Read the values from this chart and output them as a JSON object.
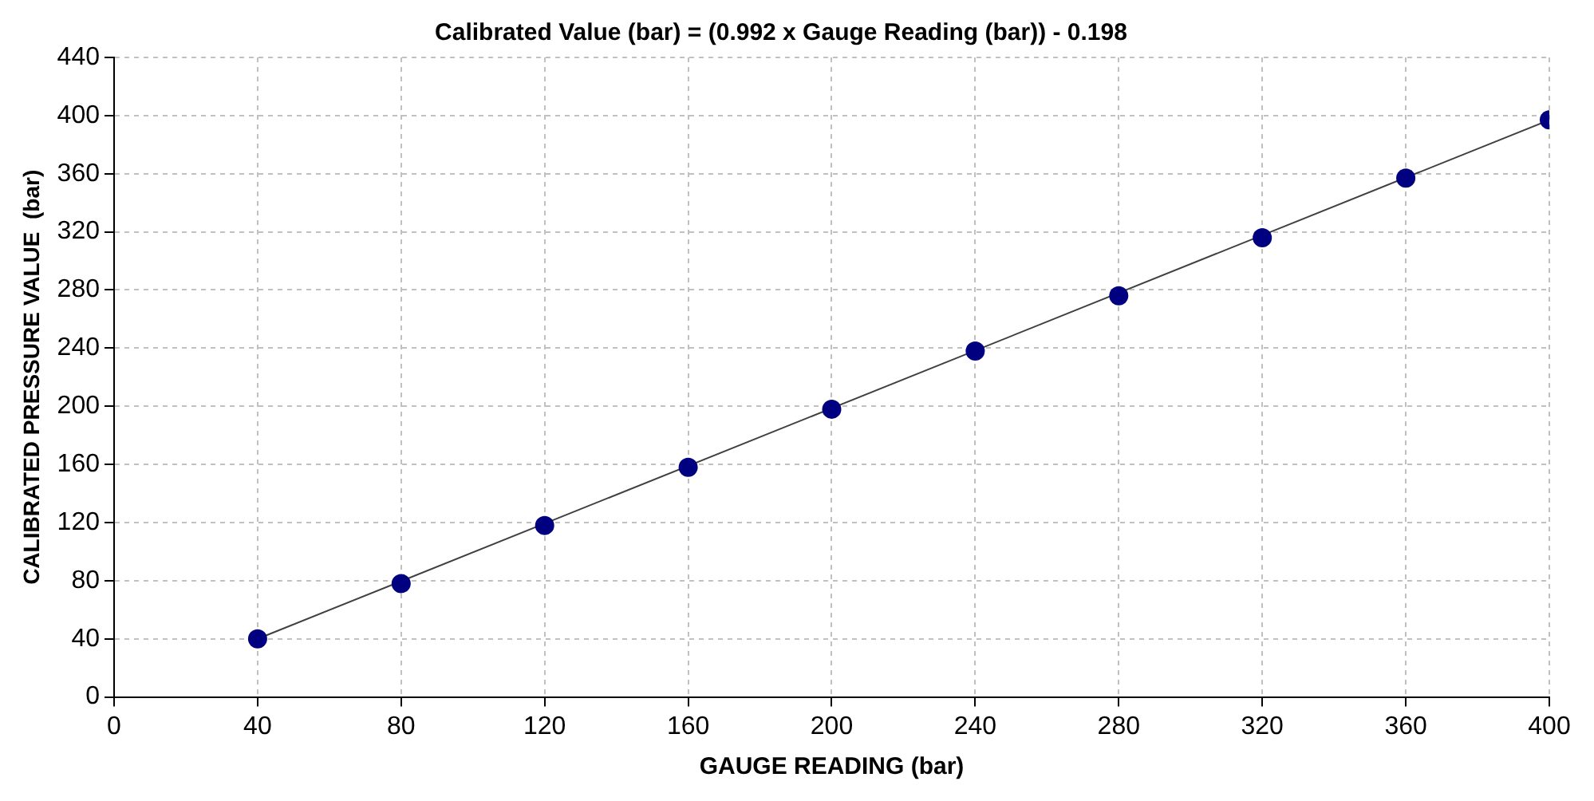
{
  "chart_data": {
    "type": "scatter",
    "title": "Calibrated Value (bar) = (0.992 x Gauge Reading (bar)) - 0.198",
    "xlabel": "GAUGE READING (bar)",
    "ylabel": "CALIBRATED PRESSURE VALUE  (bar)",
    "x": [
      40,
      80,
      120,
      160,
      200,
      240,
      280,
      320,
      360,
      400
    ],
    "series": [
      {
        "color": "#000080",
        "values": [
          40,
          78,
          118,
          158,
          198,
          238,
          276,
          316,
          357,
          397
        ],
        "marker": "circle"
      },
      {
        "type": "line",
        "color": "#404040",
        "x": [
          40,
          400
        ],
        "values": [
          40,
          397
        ],
        "marker": "none"
      }
    ],
    "xlim": [
      0,
      400
    ],
    "xticks": [
      0,
      40,
      80,
      120,
      160,
      200,
      240,
      280,
      320,
      360,
      400
    ],
    "ylim": [
      0,
      440
    ],
    "yticks": [
      0,
      40,
      80,
      120,
      160,
      200,
      240,
      280,
      320,
      360,
      400,
      440
    ],
    "grid": true,
    "legend": false
  }
}
